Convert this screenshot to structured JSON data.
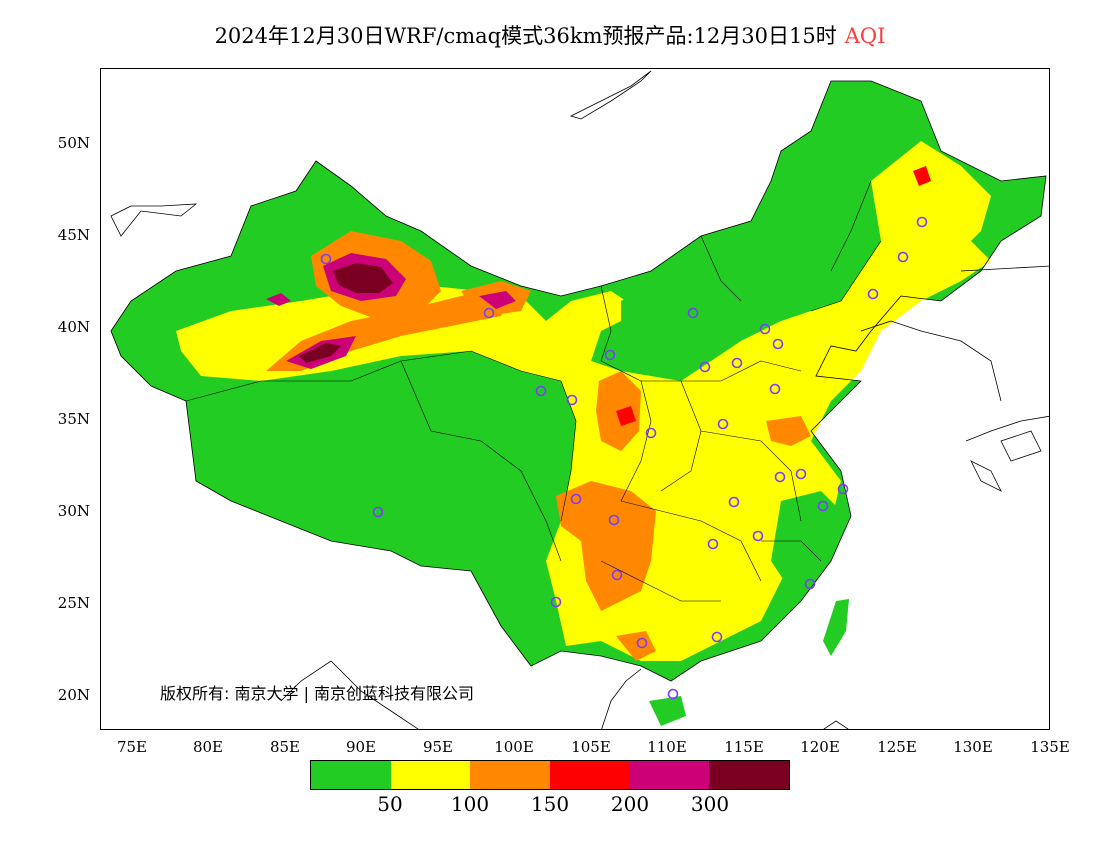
{
  "title": {
    "text": "2024年12月30日WRF/cmaq模式36km预报产品:12月30日15时",
    "variable": "AQI",
    "variable_color": "#ff3a3a"
  },
  "axes": {
    "lat_labels": [
      "50N",
      "45N",
      "40N",
      "35N",
      "30N",
      "25N",
      "20N"
    ],
    "lon_labels": [
      "75E",
      "80E",
      "85E",
      "90E",
      "95E",
      "100E",
      "105E",
      "110E",
      "115E",
      "120E",
      "125E",
      "130E",
      "135E"
    ]
  },
  "copyright": "版权所有: 南京大学 | 南京创蓝科技有限公司",
  "legend": {
    "colors": [
      "#22cc22",
      "#ffff00",
      "#ff8800",
      "#ff0000",
      "#cc0077",
      "#7a0022"
    ],
    "labels": [
      "50",
      "100",
      "150",
      "200",
      "300"
    ]
  },
  "map_colors": {
    "good": "#22cc22",
    "moderate": "#ffff00",
    "unhealthy_sensitive": "#ff8800",
    "unhealthy": "#ff0000",
    "very_unhealthy": "#cc0077",
    "hazardous": "#7a0022",
    "station_marker": "#7a3cff"
  }
}
